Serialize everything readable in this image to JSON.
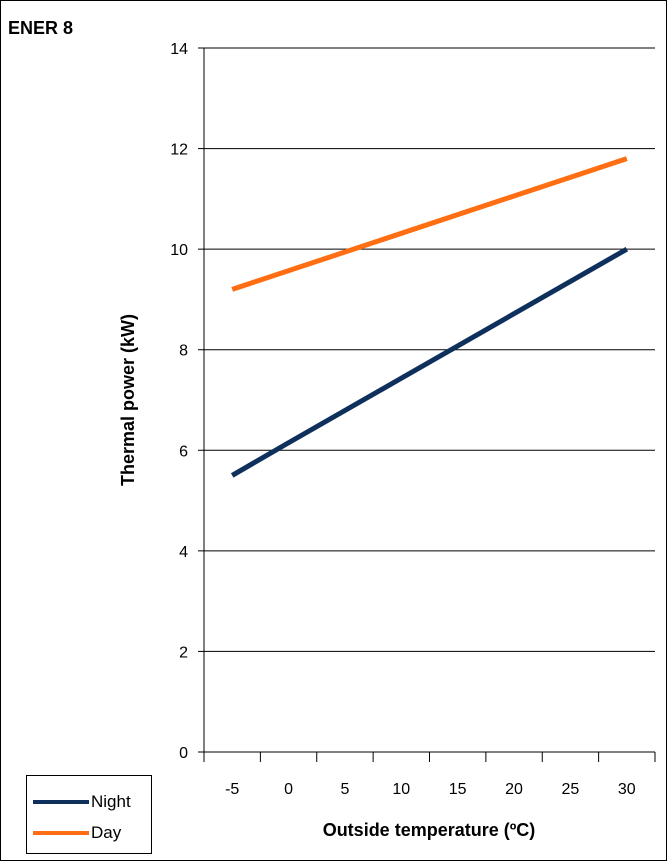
{
  "chart_data": {
    "type": "line",
    "title": "ENER 8",
    "xlabel": "Outside temperature (ºC)",
    "ylabel": "Thermal power (kW)",
    "x_ticks": [
      "-5",
      "0",
      "5",
      "10",
      "15",
      "20",
      "25",
      "30"
    ],
    "x_range": [
      -7.5,
      32.5
    ],
    "y_ticks": [
      "0",
      "2",
      "4",
      "6",
      "8",
      "10",
      "12",
      "14"
    ],
    "ylim": [
      0,
      14
    ],
    "grid": "horizontal",
    "legend_position": "bottom-left",
    "series": [
      {
        "name": "Night",
        "color": "#0f2f5c",
        "x": [
          -5,
          0,
          30
        ],
        "y": [
          5.5,
          6.15,
          10.0
        ]
      },
      {
        "name": "Day",
        "color": "#ff6e12",
        "x": [
          -5,
          30
        ],
        "y": [
          9.2,
          11.8
        ]
      }
    ]
  }
}
